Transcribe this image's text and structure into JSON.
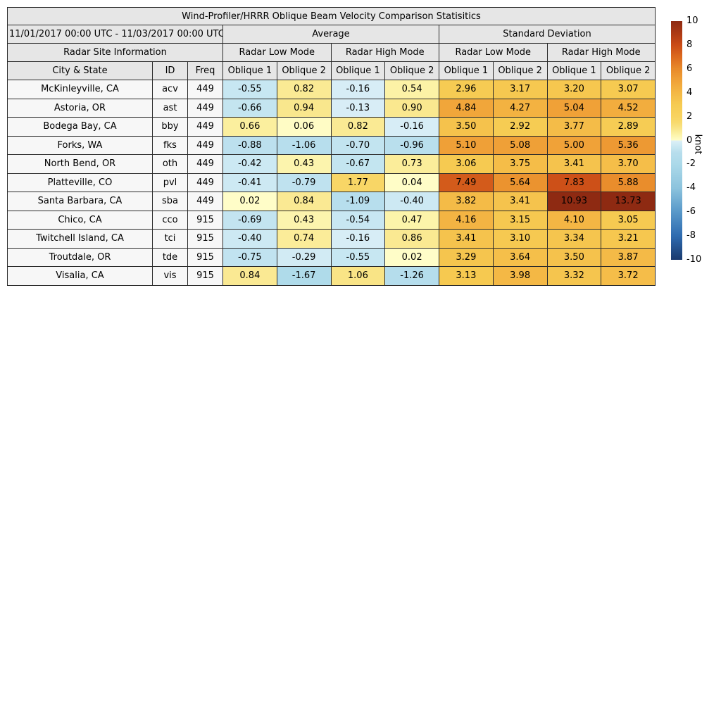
{
  "chart_data": {
    "type": "table",
    "title": "Wind-Profiler/HRRR Oblique Beam Velocity Comparison Statisitics",
    "date_range": "11/01/2017 00:00 UTC - 11/03/2017 00:00 UTC",
    "headers": {
      "average": "Average",
      "std": "Standard Deviation",
      "site_info": "Radar Site Information",
      "low_mode": "Radar Low Mode",
      "high_mode": "Radar High Mode",
      "city": "City & State",
      "id": "ID",
      "freq": "Freq",
      "oblique1": "Oblique 1",
      "oblique2": "Oblique 2"
    },
    "value_columns": [
      "Average / Radar Low Mode / Oblique 1",
      "Average / Radar Low Mode / Oblique 2",
      "Average / Radar High Mode / Oblique 1",
      "Average / Radar High Mode / Oblique 2",
      "Standard Deviation / Radar Low Mode / Oblique 1",
      "Standard Deviation / Radar Low Mode / Oblique 2",
      "Standard Deviation / Radar High Mode / Oblique 1",
      "Standard Deviation / Radar High Mode / Oblique 2"
    ],
    "rows": [
      {
        "city": "McKinleyville, CA",
        "id": "acv",
        "freq": "449",
        "values": [
          -0.55,
          0.82,
          -0.16,
          0.54,
          2.96,
          3.17,
          3.2,
          3.07
        ]
      },
      {
        "city": "Astoria, OR",
        "id": "ast",
        "freq": "449",
        "values": [
          -0.66,
          0.94,
          -0.13,
          0.9,
          4.84,
          4.27,
          5.04,
          4.52
        ]
      },
      {
        "city": "Bodega Bay, CA",
        "id": "bby",
        "freq": "449",
        "values": [
          0.66,
          0.06,
          0.82,
          -0.16,
          3.5,
          2.92,
          3.77,
          2.89
        ]
      },
      {
        "city": "Forks, WA",
        "id": "fks",
        "freq": "449",
        "values": [
          -0.88,
          -1.06,
          -0.7,
          -0.96,
          5.1,
          5.08,
          5.0,
          5.36
        ]
      },
      {
        "city": "North Bend, OR",
        "id": "oth",
        "freq": "449",
        "values": [
          -0.42,
          0.43,
          -0.67,
          0.73,
          3.06,
          3.75,
          3.41,
          3.7
        ]
      },
      {
        "city": "Platteville, CO",
        "id": "pvl",
        "freq": "449",
        "values": [
          -0.41,
          -0.79,
          1.77,
          0.04,
          7.49,
          5.64,
          7.83,
          5.88
        ]
      },
      {
        "city": "Santa Barbara, CA",
        "id": "sba",
        "freq": "449",
        "values": [
          0.02,
          0.84,
          -1.09,
          -0.4,
          3.82,
          3.41,
          10.93,
          13.73
        ]
      },
      {
        "city": "Chico, CA",
        "id": "cco",
        "freq": "915",
        "values": [
          -0.69,
          0.43,
          -0.54,
          0.47,
          4.16,
          3.15,
          4.1,
          3.05
        ]
      },
      {
        "city": "Twitchell Island, CA",
        "id": "tci",
        "freq": "915",
        "values": [
          -0.4,
          0.74,
          -0.16,
          0.86,
          3.41,
          3.1,
          3.34,
          3.21
        ]
      },
      {
        "city": "Troutdale, OR",
        "id": "tde",
        "freq": "915",
        "values": [
          -0.75,
          -0.29,
          -0.55,
          0.02,
          3.29,
          3.64,
          3.5,
          3.87
        ]
      },
      {
        "city": "Visalia, CA",
        "id": "vis",
        "freq": "915",
        "values": [
          0.84,
          -1.67,
          1.06,
          -1.26,
          3.13,
          3.98,
          3.32,
          3.72
        ]
      }
    ],
    "colorbar": {
      "label": "knot",
      "min": -10,
      "max": 10,
      "ticks": [
        10,
        8,
        6,
        4,
        2,
        0,
        -2,
        -4,
        -6,
        -8,
        -10
      ],
      "colormap_stops": [
        [
          -10,
          "#1a3a6e"
        ],
        [
          -8,
          "#2e6bb0"
        ],
        [
          -6,
          "#5898c9"
        ],
        [
          -4,
          "#8cc3dd"
        ],
        [
          -2,
          "#abd9e9"
        ],
        [
          -1,
          "#b8deed"
        ],
        [
          -0.5,
          "#c9e8f2"
        ],
        [
          -0.02,
          "#ddeff7"
        ],
        [
          0.02,
          "#fffdc8"
        ],
        [
          0.5,
          "#fcf3a8"
        ],
        [
          1,
          "#f9e589"
        ],
        [
          1.5,
          "#f8da6e"
        ],
        [
          2,
          "#f8d360"
        ],
        [
          3,
          "#f6cb52"
        ],
        [
          4,
          "#f4b845"
        ],
        [
          5,
          "#f0a238"
        ],
        [
          6,
          "#e88a2a"
        ],
        [
          7,
          "#dc6a1e"
        ],
        [
          8,
          "#ca4b17"
        ],
        [
          9,
          "#ac3914"
        ],
        [
          10,
          "#8e2a12"
        ]
      ]
    }
  },
  "styles": {
    "header_bg": "#e6e6e6",
    "row_label_bg": "#f7f7f7",
    "border_color": "#2b2b2b"
  }
}
